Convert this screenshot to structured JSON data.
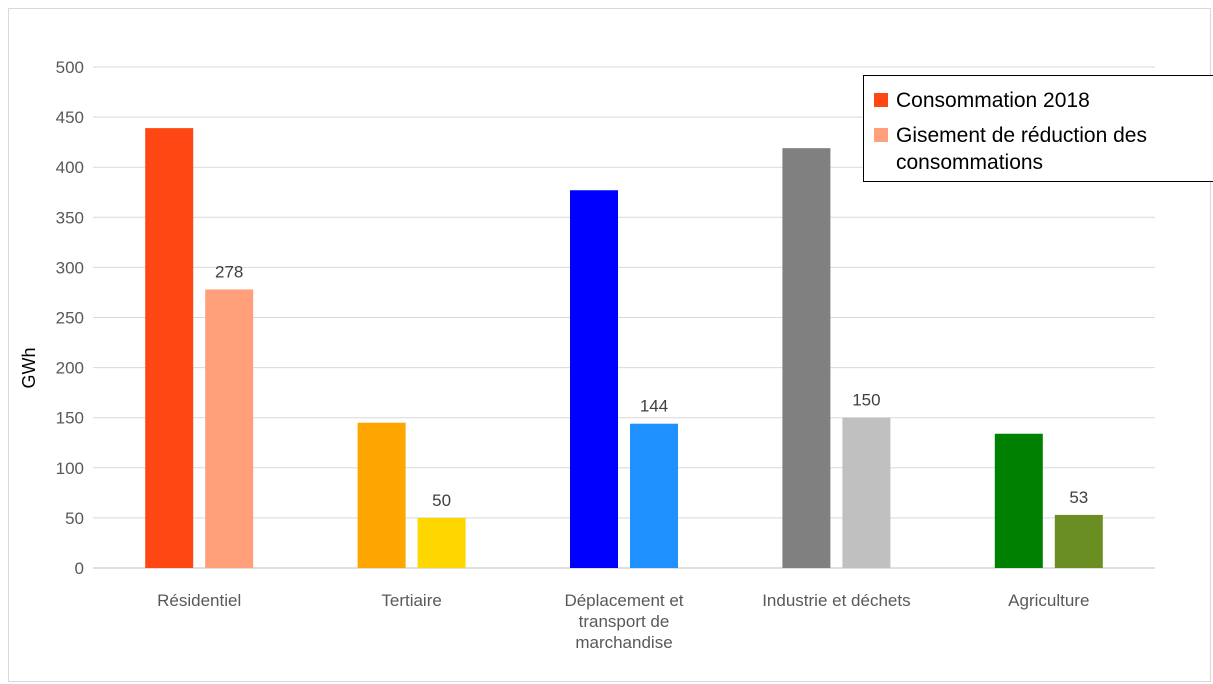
{
  "chart_data": {
    "type": "bar",
    "title": "",
    "xlabel": "",
    "ylabel": "GWh",
    "ylim": [
      0,
      500
    ],
    "yticks": [
      0,
      50,
      100,
      150,
      200,
      250,
      300,
      350,
      400,
      450,
      500
    ],
    "grid": true,
    "legend_position": "top-right",
    "categories": [
      [
        "Résidentiel"
      ],
      [
        "Tertiaire"
      ],
      [
        "Déplacement et",
        "transport de",
        "marchandise"
      ],
      [
        "Industrie et déchets"
      ],
      [
        "Agriculture"
      ]
    ],
    "series": [
      {
        "name": "Consommation 2018",
        "values": [
          439,
          145,
          377,
          419,
          134
        ],
        "colors": [
          "#ff4713",
          "#ffa500",
          "#0000ff",
          "#808080",
          "#008000"
        ],
        "legend_color": "#ff4713",
        "data_labels": [
          null,
          null,
          null,
          null,
          null
        ]
      },
      {
        "name": "Gisement de réduction des consommations",
        "values": [
          278,
          50,
          144,
          150,
          53
        ],
        "colors": [
          "#ffa07a",
          "#ffd700",
          "#1e90ff",
          "#c0c0c0",
          "#6b8e23"
        ],
        "legend_color": "#ffa07a",
        "data_labels": [
          "278",
          "50",
          "144",
          "150",
          "53"
        ]
      }
    ]
  }
}
